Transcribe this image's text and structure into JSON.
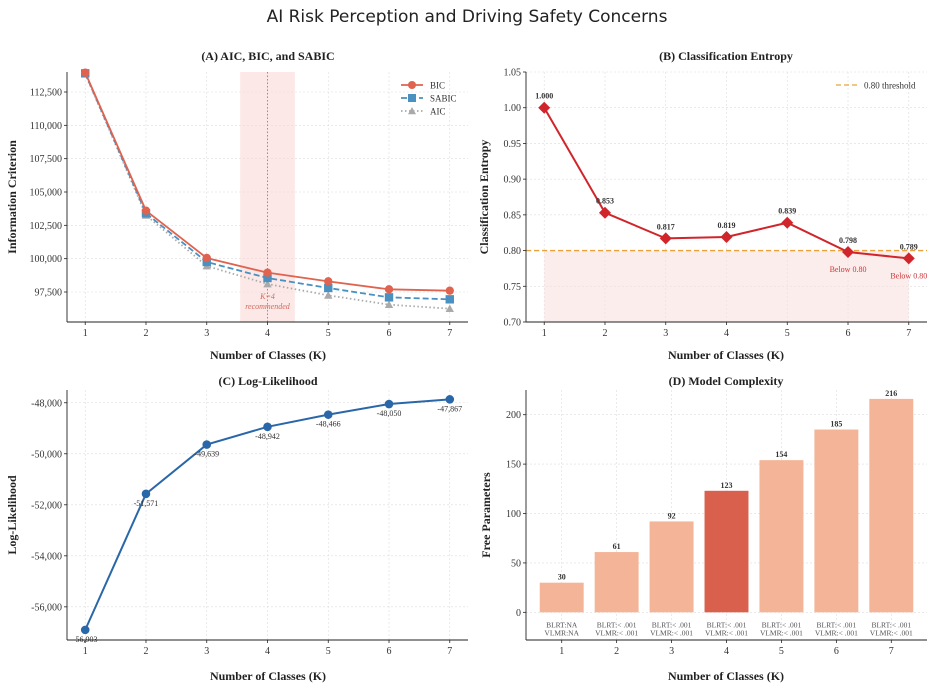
{
  "figure": {
    "title": "AI Risk Perception and Driving Safety Concerns"
  },
  "chart_data": [
    {
      "id": "A",
      "type": "line",
      "title": "(A) AIC, BIC, and SABIC",
      "xlabel": "Number of Classes (K)",
      "ylabel": "Information Criterion",
      "x": [
        1,
        2,
        3,
        4,
        5,
        6,
        7
      ],
      "ylim": [
        95250,
        114000
      ],
      "yticks": [
        97500,
        100000,
        102500,
        105000,
        107500,
        110000,
        112500
      ],
      "yticklabels": [
        "97,500",
        "100,000",
        "102,500",
        "105,000",
        "107,500",
        "110,000",
        "112,500"
      ],
      "series": [
        {
          "name": "BIC",
          "color": "#e0634f",
          "marker": "circle",
          "dash": "solid",
          "values": [
            113950,
            103600,
            100050,
            98950,
            98300,
            97700,
            97600
          ]
        },
        {
          "name": "SABIC",
          "color": "#4a90c0",
          "marker": "square",
          "dash": "dashed",
          "values": [
            113900,
            103400,
            99750,
            98550,
            97800,
            97100,
            96950
          ]
        },
        {
          "name": "AIC",
          "color": "#aaaaaa",
          "marker": "triangle",
          "dash": "dotted",
          "values": [
            113850,
            103250,
            99450,
            98100,
            97250,
            96550,
            96250
          ]
        }
      ],
      "highlight": {
        "x_from": 3.55,
        "x_to": 4.45,
        "color": "#f7d6d3",
        "line_x": 4
      },
      "annotation": [
        "K=4",
        "recommended"
      ],
      "legend": "top-right",
      "grid": true
    },
    {
      "id": "B",
      "type": "line",
      "title": "(B) Classification Entropy",
      "xlabel": "Number of Classes (K)",
      "ylabel": "Classification Entropy",
      "x": [
        1,
        2,
        3,
        4,
        5,
        6,
        7
      ],
      "values": [
        1.0,
        0.853,
        0.817,
        0.819,
        0.839,
        0.798,
        0.789
      ],
      "labels": [
        "1.000",
        "0.853",
        "0.817",
        "0.819",
        "0.839",
        "0.798",
        "0.789"
      ],
      "ylim": [
        0.7,
        1.05
      ],
      "yticks": [
        0.7,
        0.75,
        0.8,
        0.85,
        0.9,
        0.95,
        1.0,
        1.05
      ],
      "yticklabels": [
        "0.70",
        "0.75",
        "0.80",
        "0.85",
        "0.90",
        "0.95",
        "1.00",
        "1.05"
      ],
      "color": "#d0252b",
      "threshold": {
        "value": 0.8,
        "label": "0.80 threshold",
        "color": "#e8a33d"
      },
      "below_label": "Below 0.80",
      "legend": "top-right",
      "grid": true
    },
    {
      "id": "C",
      "type": "line",
      "title": "(C) Log-Likelihood",
      "xlabel": "Number of Classes (K)",
      "ylabel": "Log-Likelihood",
      "x": [
        1,
        2,
        3,
        4,
        5,
        6,
        7
      ],
      "values": [
        -56903,
        -51571,
        -49639,
        -48942,
        -48466,
        -48050,
        -47867
      ],
      "labels": [
        "-56,903",
        "-51,571",
        "-49,639",
        "-48,942",
        "-48,466",
        "-48,050",
        "-47,867"
      ],
      "ylim": [
        -57300,
        -47500
      ],
      "yticks": [
        -56000,
        -54000,
        -52000,
        -50000,
        -48000
      ],
      "yticklabels": [
        "-56,000",
        "-54,000",
        "-52,000",
        "-50,000",
        "-48,000"
      ],
      "color": "#2a67a8",
      "grid": true
    },
    {
      "id": "D",
      "type": "bar",
      "title": "(D) Model Complexity",
      "xlabel": "Number of Classes (K)",
      "ylabel": "Free Parameters",
      "categories": [
        "1",
        "2",
        "3",
        "4",
        "5",
        "6",
        "7"
      ],
      "values": [
        30,
        61,
        92,
        123,
        154,
        185,
        216
      ],
      "labels": [
        "30",
        "61",
        "92",
        "123",
        "154",
        "185",
        "216"
      ],
      "ylim": [
        -28,
        225
      ],
      "yticks": [
        0,
        50,
        100,
        150,
        200
      ],
      "yticklabels": [
        "0",
        "50",
        "100",
        "150",
        "200"
      ],
      "bar_color": "#f4b497",
      "highlight_color": "#d9604c",
      "highlight_index": 3,
      "stats_line1": [
        "BLRT:NA",
        "BLRT:< .001",
        "BLRT:< .001",
        "BLRT:< .001",
        "BLRT:< .001",
        "BLRT:< .001",
        "BLRT:< .001"
      ],
      "stats_line2": [
        "VLMR:NA",
        "VLMR:< .001",
        "VLMR:< .001",
        "VLMR:< .001",
        "VLMR:< .001",
        "VLMR:< .001",
        "VLMR:< .001"
      ],
      "grid": true
    }
  ]
}
